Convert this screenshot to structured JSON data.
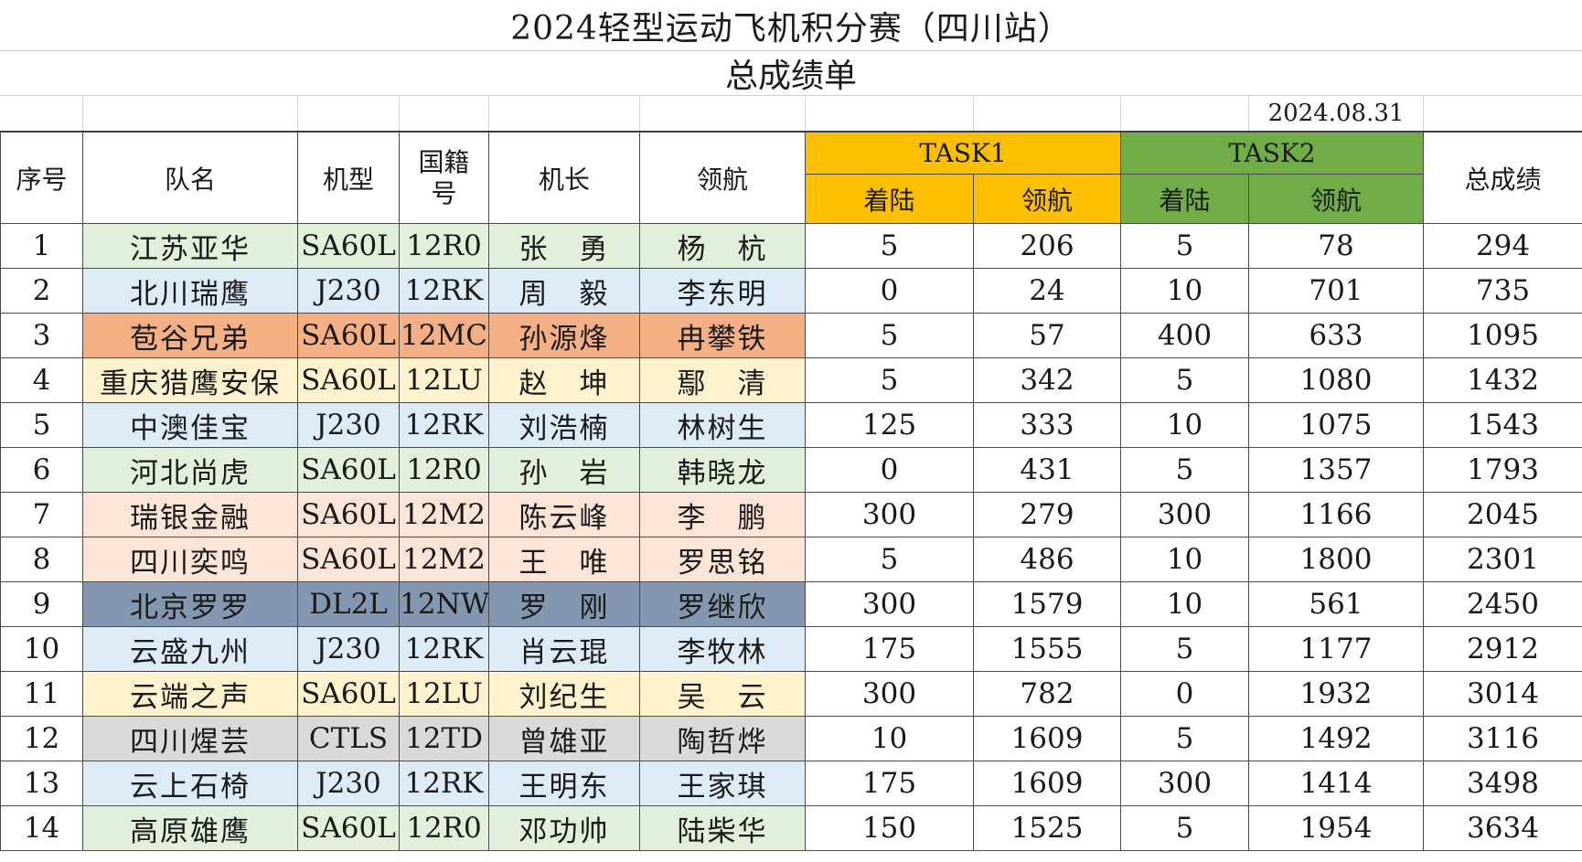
{
  "title": "2024轻型运动飞机积分赛（四川站）",
  "subtitle": "总成绩单",
  "date": "2024.08.31",
  "headers": {
    "seq": "序号",
    "team": "队名",
    "model": "机型",
    "nationality_line1": "国籍",
    "nationality_line2": "号",
    "captain": "机长",
    "navigator": "领航",
    "task1": "TASK1",
    "task2": "TASK2",
    "landing": "着陆",
    "navigation": "领航",
    "total": "总成绩"
  },
  "colors": {
    "task1": "#fcc000",
    "task2": "#70ad47",
    "green": "#e2efda",
    "blue": "#ddebf7",
    "orange": "#f4b084",
    "yellow": "#fff2cc",
    "peach": "#fce4d6",
    "navy": "#8497b0",
    "gray": "#d9d9d9"
  },
  "rows": [
    {
      "seq": "1",
      "team": "江苏亚华",
      "model": "SA60L",
      "reg": "12R0",
      "captain": "张　勇",
      "navigator": "杨　杭",
      "t1_land": "5",
      "t1_nav": "206",
      "t2_land": "5",
      "t2_nav": "78",
      "total": "294",
      "color": "green"
    },
    {
      "seq": "2",
      "team": "北川瑞鹰",
      "model": "J230",
      "reg": "12RK",
      "captain": "周　毅",
      "navigator": "李东明",
      "t1_land": "0",
      "t1_nav": "24",
      "t2_land": "10",
      "t2_nav": "701",
      "total": "735",
      "color": "blue"
    },
    {
      "seq": "3",
      "team": "苞谷兄弟",
      "model": "SA60L",
      "reg": "12MC",
      "captain": "孙源烽",
      "navigator": "冉攀铁",
      "t1_land": "5",
      "t1_nav": "57",
      "t2_land": "400",
      "t2_nav": "633",
      "total": "1095",
      "color": "orange"
    },
    {
      "seq": "4",
      "team": "重庆猎鹰安保",
      "model": "SA60L",
      "reg": "12LU",
      "captain": "赵　坤",
      "navigator": "鄢　清",
      "t1_land": "5",
      "t1_nav": "342",
      "t2_land": "5",
      "t2_nav": "1080",
      "total": "1432",
      "color": "yellow"
    },
    {
      "seq": "5",
      "team": "中澳佳宝",
      "model": "J230",
      "reg": "12RK",
      "captain": "刘浩楠",
      "navigator": "林树生",
      "t1_land": "125",
      "t1_nav": "333",
      "t2_land": "10",
      "t2_nav": "1075",
      "total": "1543",
      "color": "blue"
    },
    {
      "seq": "6",
      "team": "河北尚虎",
      "model": "SA60L",
      "reg": "12R0",
      "captain": "孙　岩",
      "navigator": "韩晓龙",
      "t1_land": "0",
      "t1_nav": "431",
      "t2_land": "5",
      "t2_nav": "1357",
      "total": "1793",
      "color": "green"
    },
    {
      "seq": "7",
      "team": "瑞银金融",
      "model": "SA60L",
      "reg": "12M2",
      "captain": "陈云峰",
      "navigator": "李　鹏",
      "t1_land": "300",
      "t1_nav": "279",
      "t2_land": "300",
      "t2_nav": "1166",
      "total": "2045",
      "color": "peach"
    },
    {
      "seq": "8",
      "team": "四川奕鸣",
      "model": "SA60L",
      "reg": "12M2",
      "captain": "王　唯",
      "navigator": "罗思铭",
      "t1_land": "5",
      "t1_nav": "486",
      "t2_land": "10",
      "t2_nav": "1800",
      "total": "2301",
      "color": "peach"
    },
    {
      "seq": "9",
      "team": "北京罗罗",
      "model": "DL2L",
      "reg": "12NW",
      "captain": "罗　刚",
      "navigator": "罗继欣",
      "t1_land": "300",
      "t1_nav": "1579",
      "t2_land": "10",
      "t2_nav": "561",
      "total": "2450",
      "color": "navy"
    },
    {
      "seq": "10",
      "team": "云盛九州",
      "model": "J230",
      "reg": "12RK",
      "captain": "肖云琨",
      "navigator": "李牧林",
      "t1_land": "175",
      "t1_nav": "1555",
      "t2_land": "5",
      "t2_nav": "1177",
      "total": "2912",
      "color": "blue"
    },
    {
      "seq": "11",
      "team": "云端之声",
      "model": "SA60L",
      "reg": "12LU",
      "captain": "刘纪生",
      "navigator": "吴　云",
      "t1_land": "300",
      "t1_nav": "782",
      "t2_land": "0",
      "t2_nav": "1932",
      "total": "3014",
      "color": "yellow"
    },
    {
      "seq": "12",
      "team": "四川煋芸",
      "model": "CTLS",
      "reg": "12TD",
      "captain": "曾雄亚",
      "navigator": "陶哲烨",
      "t1_land": "10",
      "t1_nav": "1609",
      "t2_land": "5",
      "t2_nav": "1492",
      "total": "3116",
      "color": "gray"
    },
    {
      "seq": "13",
      "team": "云上石椅",
      "model": "J230",
      "reg": "12RK",
      "captain": "王明东",
      "navigator": "王家琪",
      "t1_land": "175",
      "t1_nav": "1609",
      "t2_land": "300",
      "t2_nav": "1414",
      "total": "3498",
      "color": "blue"
    },
    {
      "seq": "14",
      "team": "高原雄鹰",
      "model": "SA60L",
      "reg": "12R0",
      "captain": "邓功帅",
      "navigator": "陆柴华",
      "t1_land": "150",
      "t1_nav": "1525",
      "t2_land": "5",
      "t2_nav": "1954",
      "total": "3634",
      "color": "green"
    }
  ]
}
